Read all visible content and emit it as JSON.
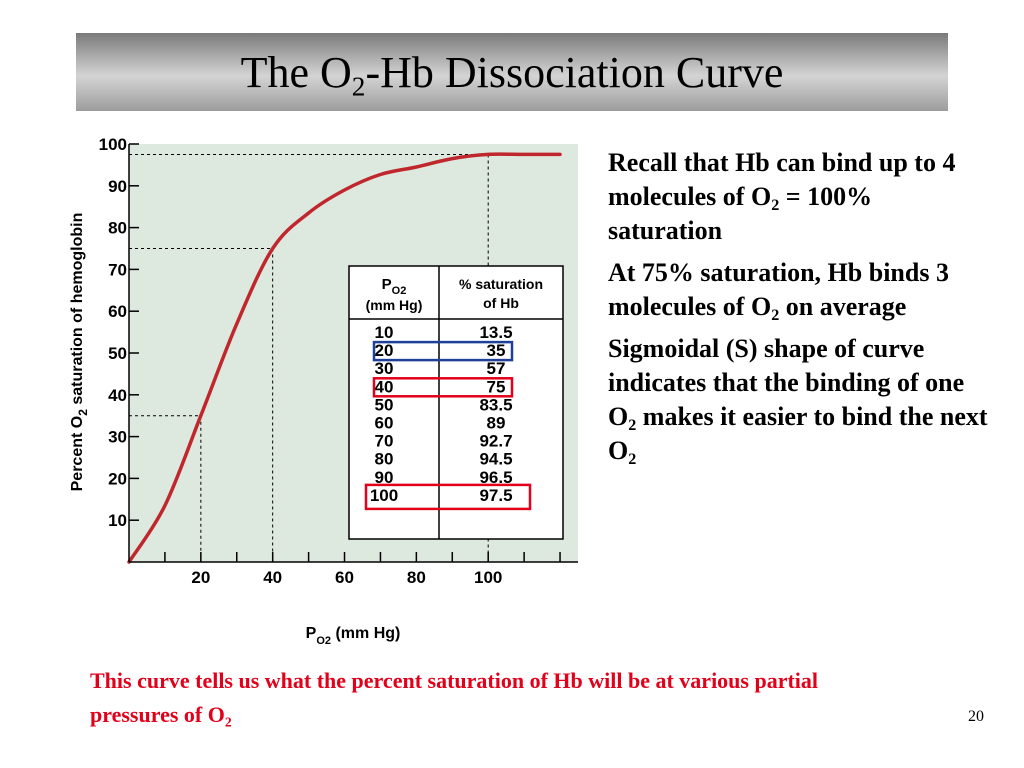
{
  "title": {
    "prefix": "The O",
    "sub": "2",
    "suffix": "-Hb Dissociation Curve"
  },
  "chart_data": {
    "type": "line",
    "series": [
      {
        "x": [
          0,
          10,
          20,
          30,
          40,
          50,
          60,
          70,
          80,
          90,
          100,
          110,
          120
        ],
        "y": [
          0,
          13.5,
          35,
          57,
          75,
          83.5,
          89,
          92.7,
          94.5,
          96.5,
          97.5,
          97.5,
          97.5
        ]
      }
    ],
    "xlim": [
      0,
      125
    ],
    "ylim": [
      0,
      100
    ],
    "x_ticks": [
      20,
      40,
      60,
      80,
      100
    ],
    "y_ticks": [
      10,
      20,
      30,
      40,
      50,
      60,
      70,
      80,
      90,
      100
    ],
    "xlabel": {
      "main": "P",
      "sub": "O2",
      "unit": " (mm Hg)"
    },
    "ylabel": {
      "pre": "Percent O",
      "sub": "2",
      "post": " saturation of hemoglobin"
    },
    "guides": [
      {
        "x": 20,
        "y": 35
      },
      {
        "x": 40,
        "y": 75
      },
      {
        "x": 100,
        "y": 97.5
      }
    ],
    "background": "#dde8df",
    "curve_color": "#c0272d",
    "table": {
      "col1_header": {
        "main": "P",
        "sub": "O2",
        "unit": "(mm Hg)"
      },
      "col2_header": [
        "% saturation",
        "of Hb"
      ],
      "rows": [
        [
          "10",
          "13.5"
        ],
        [
          "20",
          "35"
        ],
        [
          "30",
          "57"
        ],
        [
          "40",
          "75"
        ],
        [
          "50",
          "83.5"
        ],
        [
          "60",
          "89"
        ],
        [
          "70",
          "92.7"
        ],
        [
          "80",
          "94.5"
        ],
        [
          "90",
          "96.5"
        ],
        [
          "100",
          "97.5"
        ]
      ],
      "highlights": [
        {
          "row": 1,
          "color": "#1f3f99"
        },
        {
          "row": 3,
          "color": "#e2001a"
        },
        {
          "row": 9,
          "color": "#e2001a"
        }
      ]
    }
  },
  "bullets": [
    {
      "text": "Recall that Hb can bind up to 4 molecules of O",
      "sub": "2",
      "tail": " = 100% saturation"
    },
    {
      "text": "At 75% saturation, Hb binds 3 molecules of O",
      "sub": "2",
      "tail": " on average"
    },
    {
      "text": "Sigmoidal (S) shape of curve indicates that the binding of one O",
      "sub": "2",
      "tail": " makes it easier to bind the next O",
      "sub2": "2"
    }
  ],
  "caption": {
    "text": "This curve tells us what the percent saturation of Hb will be at various partial pressures of O",
    "sub": "2",
    "color": "#e2001a"
  },
  "slide_number": "20"
}
